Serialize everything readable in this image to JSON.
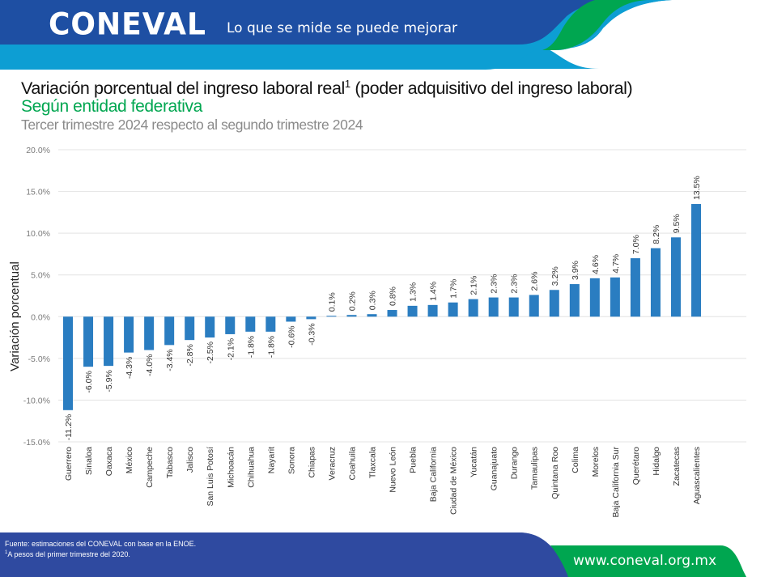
{
  "header": {
    "logo_text": "CONEVAL",
    "tagline": "Lo que se mide se puede mejorar",
    "colors": {
      "dark_blue": "#1e4fa3",
      "light_blue": "#0d9ed3",
      "green": "#00a650"
    }
  },
  "titles": {
    "title": "Variación porcentual del ingreso laboral real",
    "title_sup": "1",
    "title_suffix": " (poder adquisitivo del ingreso laboral)",
    "subtitle": "Según entidad federativa",
    "period": "Tercer trimestre 2024 respecto al segundo trimestre 2024"
  },
  "chart_data": {
    "type": "bar",
    "title": "Variación porcentual del ingreso laboral real (poder adquisitivo del ingreso laboral)",
    "xlabel": "",
    "ylabel": "Variación porcentual",
    "ylim": [
      -15,
      20
    ],
    "yticks": [
      20,
      15,
      10,
      5,
      0,
      -5,
      -10,
      -15
    ],
    "ytick_labels": [
      "20.0%",
      "15.0%",
      "10.0%",
      "5.0%",
      "0.0%",
      "-5.0%",
      "-10.0%",
      "-15.0%"
    ],
    "grid": true,
    "legend": "none",
    "bar_color": "#2a7dc1",
    "categories": [
      "Guerrero",
      "Sinaloa",
      "Oaxaca",
      "México",
      "Campeche",
      "Tabasco",
      "Jalisco",
      "San Luis Potosí",
      "Michoacán",
      "Chihuahua",
      "Nayarit",
      "Sonora",
      "Chiapas",
      "Veracruz",
      "Coahuila",
      "Tlaxcala",
      "Nuevo León",
      "Puebla",
      "Baja California",
      "Ciudad de México",
      "Yucatán",
      "Guanajuato",
      "Durango",
      "Tamaulipas",
      "Quintana Roo",
      "Colima",
      "Morelos",
      "Baja California Sur",
      "Querétaro",
      "Hidalgo",
      "Zacatecas",
      "Aguascalientes"
    ],
    "values": [
      -11.2,
      -6.0,
      -5.9,
      -4.3,
      -4.0,
      -3.4,
      -2.8,
      -2.5,
      -2.1,
      -1.8,
      -1.8,
      -0.6,
      -0.3,
      0.1,
      0.2,
      0.3,
      0.8,
      1.3,
      1.4,
      1.7,
      2.1,
      2.3,
      2.3,
      2.6,
      3.2,
      3.9,
      4.6,
      4.7,
      7.0,
      8.2,
      9.5,
      13.5
    ],
    "data_labels": [
      "-11.2%",
      "-6.0%",
      "-5.9%",
      "-4.3%",
      "-4.0%",
      "-3.4%",
      "-2.8%",
      "-2.5%",
      "-2.1%",
      "-1.8%",
      "-1.8%",
      "-0.6%",
      "-0.3%",
      "0.1%",
      "0.2%",
      "0.3%",
      "0.8%",
      "1.3%",
      "1.4%",
      "1.7%",
      "2.1%",
      "2.3%",
      "2.3%",
      "2.6%",
      "3.2%",
      "3.9%",
      "4.6%",
      "4.7%",
      "7.0%",
      "8.2%",
      "9.5%",
      "13.5%"
    ]
  },
  "footer": {
    "source": "Fuente: estimaciones del CONEVAL con base en la ENOE.",
    "note_sup": "1",
    "note": "A pesos del primer trimestre del 2020.",
    "url": "www.coneval.org.mx"
  }
}
